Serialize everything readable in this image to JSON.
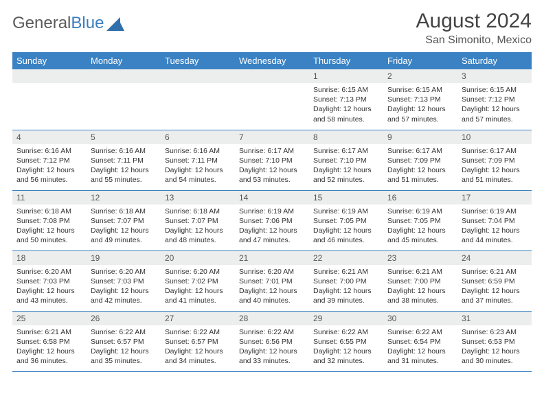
{
  "brand": {
    "text1": "General",
    "text2": "Blue",
    "text_color": "#5a5a5a",
    "accent_color": "#3a7fbf"
  },
  "header": {
    "title": "August 2024",
    "location": "San Simonito, Mexico"
  },
  "colors": {
    "header_bg": "#3a82c4",
    "header_text": "#ffffff",
    "daynum_bg": "#eceded",
    "row_border": "#3a82c4",
    "body_bg": "#ffffff",
    "text": "#333333"
  },
  "weekdays": [
    "Sunday",
    "Monday",
    "Tuesday",
    "Wednesday",
    "Thursday",
    "Friday",
    "Saturday"
  ],
  "weeks": [
    [
      null,
      null,
      null,
      null,
      {
        "n": "1",
        "sunrise": "6:15 AM",
        "sunset": "7:13 PM",
        "daylight": "12 hours and 58 minutes."
      },
      {
        "n": "2",
        "sunrise": "6:15 AM",
        "sunset": "7:13 PM",
        "daylight": "12 hours and 57 minutes."
      },
      {
        "n": "3",
        "sunrise": "6:15 AM",
        "sunset": "7:12 PM",
        "daylight": "12 hours and 57 minutes."
      }
    ],
    [
      {
        "n": "4",
        "sunrise": "6:16 AM",
        "sunset": "7:12 PM",
        "daylight": "12 hours and 56 minutes."
      },
      {
        "n": "5",
        "sunrise": "6:16 AM",
        "sunset": "7:11 PM",
        "daylight": "12 hours and 55 minutes."
      },
      {
        "n": "6",
        "sunrise": "6:16 AM",
        "sunset": "7:11 PM",
        "daylight": "12 hours and 54 minutes."
      },
      {
        "n": "7",
        "sunrise": "6:17 AM",
        "sunset": "7:10 PM",
        "daylight": "12 hours and 53 minutes."
      },
      {
        "n": "8",
        "sunrise": "6:17 AM",
        "sunset": "7:10 PM",
        "daylight": "12 hours and 52 minutes."
      },
      {
        "n": "9",
        "sunrise": "6:17 AM",
        "sunset": "7:09 PM",
        "daylight": "12 hours and 51 minutes."
      },
      {
        "n": "10",
        "sunrise": "6:17 AM",
        "sunset": "7:09 PM",
        "daylight": "12 hours and 51 minutes."
      }
    ],
    [
      {
        "n": "11",
        "sunrise": "6:18 AM",
        "sunset": "7:08 PM",
        "daylight": "12 hours and 50 minutes."
      },
      {
        "n": "12",
        "sunrise": "6:18 AM",
        "sunset": "7:07 PM",
        "daylight": "12 hours and 49 minutes."
      },
      {
        "n": "13",
        "sunrise": "6:18 AM",
        "sunset": "7:07 PM",
        "daylight": "12 hours and 48 minutes."
      },
      {
        "n": "14",
        "sunrise": "6:19 AM",
        "sunset": "7:06 PM",
        "daylight": "12 hours and 47 minutes."
      },
      {
        "n": "15",
        "sunrise": "6:19 AM",
        "sunset": "7:05 PM",
        "daylight": "12 hours and 46 minutes."
      },
      {
        "n": "16",
        "sunrise": "6:19 AM",
        "sunset": "7:05 PM",
        "daylight": "12 hours and 45 minutes."
      },
      {
        "n": "17",
        "sunrise": "6:19 AM",
        "sunset": "7:04 PM",
        "daylight": "12 hours and 44 minutes."
      }
    ],
    [
      {
        "n": "18",
        "sunrise": "6:20 AM",
        "sunset": "7:03 PM",
        "daylight": "12 hours and 43 minutes."
      },
      {
        "n": "19",
        "sunrise": "6:20 AM",
        "sunset": "7:03 PM",
        "daylight": "12 hours and 42 minutes."
      },
      {
        "n": "20",
        "sunrise": "6:20 AM",
        "sunset": "7:02 PM",
        "daylight": "12 hours and 41 minutes."
      },
      {
        "n": "21",
        "sunrise": "6:20 AM",
        "sunset": "7:01 PM",
        "daylight": "12 hours and 40 minutes."
      },
      {
        "n": "22",
        "sunrise": "6:21 AM",
        "sunset": "7:00 PM",
        "daylight": "12 hours and 39 minutes."
      },
      {
        "n": "23",
        "sunrise": "6:21 AM",
        "sunset": "7:00 PM",
        "daylight": "12 hours and 38 minutes."
      },
      {
        "n": "24",
        "sunrise": "6:21 AM",
        "sunset": "6:59 PM",
        "daylight": "12 hours and 37 minutes."
      }
    ],
    [
      {
        "n": "25",
        "sunrise": "6:21 AM",
        "sunset": "6:58 PM",
        "daylight": "12 hours and 36 minutes."
      },
      {
        "n": "26",
        "sunrise": "6:22 AM",
        "sunset": "6:57 PM",
        "daylight": "12 hours and 35 minutes."
      },
      {
        "n": "27",
        "sunrise": "6:22 AM",
        "sunset": "6:57 PM",
        "daylight": "12 hours and 34 minutes."
      },
      {
        "n": "28",
        "sunrise": "6:22 AM",
        "sunset": "6:56 PM",
        "daylight": "12 hours and 33 minutes."
      },
      {
        "n": "29",
        "sunrise": "6:22 AM",
        "sunset": "6:55 PM",
        "daylight": "12 hours and 32 minutes."
      },
      {
        "n": "30",
        "sunrise": "6:22 AM",
        "sunset": "6:54 PM",
        "daylight": "12 hours and 31 minutes."
      },
      {
        "n": "31",
        "sunrise": "6:23 AM",
        "sunset": "6:53 PM",
        "daylight": "12 hours and 30 minutes."
      }
    ]
  ],
  "labels": {
    "sunrise": "Sunrise:",
    "sunset": "Sunset:",
    "daylight": "Daylight:"
  }
}
